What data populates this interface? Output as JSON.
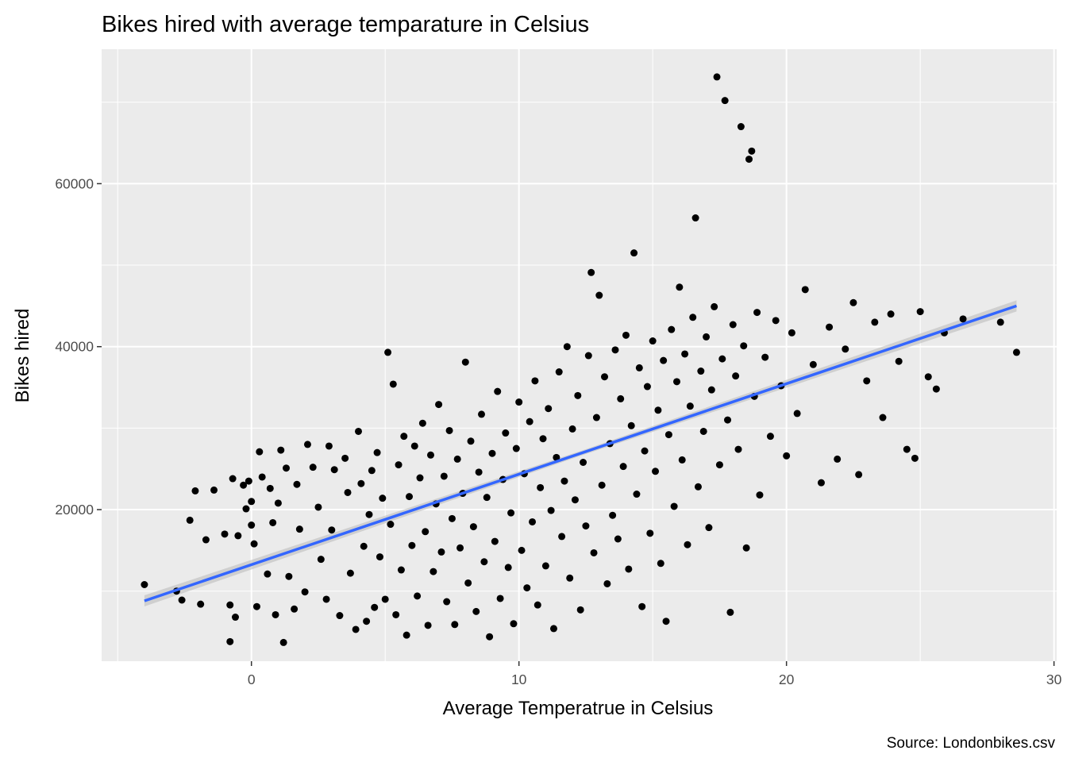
{
  "chart_data": {
    "type": "scatter",
    "title": "Bikes hired with average temparature in Celsius",
    "xlabel": "Average Temperatrue in Celsius",
    "ylabel": "Bikes hired",
    "caption": "Source: Londonbikes.csv",
    "xlim": [
      -5.6,
      30.1
    ],
    "ylim": [
      1400,
      76500
    ],
    "x_ticks": [
      0,
      10,
      20,
      30
    ],
    "x_tick_labels": [
      "0",
      "10",
      "20",
      "30"
    ],
    "y_ticks": [
      20000,
      40000,
      60000
    ],
    "y_tick_labels": [
      "20000",
      "40000",
      "60000"
    ],
    "grid": true,
    "background": "#ebebeb",
    "point_color": "#000000",
    "smooth_line": {
      "method": "linear",
      "color": "#3366ff",
      "ribbon_color": "#bdbdbd",
      "x": [
        -4.0,
        28.6
      ],
      "y": [
        8800,
        45000
      ]
    },
    "series": [
      {
        "points": [
          [
            -4.0,
            10800
          ],
          [
            -2.8,
            10000
          ],
          [
            -2.6,
            8900
          ],
          [
            -2.3,
            18700
          ],
          [
            -2.1,
            22300
          ],
          [
            -1.9,
            8400
          ],
          [
            -1.7,
            16300
          ],
          [
            -1.4,
            22400
          ],
          [
            -1.0,
            17000
          ],
          [
            -0.8,
            8300
          ],
          [
            -0.8,
            3800
          ],
          [
            -0.7,
            23800
          ],
          [
            -0.6,
            6800
          ],
          [
            -0.5,
            16800
          ],
          [
            -0.3,
            23000
          ],
          [
            -0.2,
            20100
          ],
          [
            -0.1,
            23500
          ],
          [
            0.0,
            21000
          ],
          [
            0.0,
            18100
          ],
          [
            0.1,
            15800
          ],
          [
            0.2,
            8100
          ],
          [
            0.3,
            27100
          ],
          [
            0.4,
            24000
          ],
          [
            0.6,
            12100
          ],
          [
            0.7,
            22600
          ],
          [
            0.8,
            18400
          ],
          [
            0.9,
            7100
          ],
          [
            1.0,
            20800
          ],
          [
            1.1,
            27300
          ],
          [
            1.2,
            3700
          ],
          [
            1.3,
            25100
          ],
          [
            1.4,
            11800
          ],
          [
            1.6,
            7800
          ],
          [
            1.7,
            23100
          ],
          [
            1.8,
            17600
          ],
          [
            2.0,
            9900
          ],
          [
            2.1,
            28000
          ],
          [
            2.3,
            25200
          ],
          [
            2.5,
            20300
          ],
          [
            2.6,
            13900
          ],
          [
            2.8,
            9000
          ],
          [
            2.9,
            27800
          ],
          [
            3.0,
            17500
          ],
          [
            3.1,
            24900
          ],
          [
            3.3,
            7000
          ],
          [
            3.5,
            26300
          ],
          [
            3.6,
            22100
          ],
          [
            3.7,
            12200
          ],
          [
            3.9,
            5300
          ],
          [
            4.0,
            29600
          ],
          [
            4.1,
            23200
          ],
          [
            4.2,
            15500
          ],
          [
            4.3,
            6300
          ],
          [
            4.4,
            19400
          ],
          [
            4.5,
            24800
          ],
          [
            4.6,
            8000
          ],
          [
            4.7,
            27000
          ],
          [
            4.8,
            14200
          ],
          [
            4.9,
            21400
          ],
          [
            5.0,
            9000
          ],
          [
            5.1,
            39300
          ],
          [
            5.2,
            18200
          ],
          [
            5.3,
            35400
          ],
          [
            5.4,
            7100
          ],
          [
            5.5,
            25500
          ],
          [
            5.6,
            12600
          ],
          [
            5.7,
            29000
          ],
          [
            5.8,
            4600
          ],
          [
            5.9,
            21600
          ],
          [
            6.0,
            15600
          ],
          [
            6.1,
            27800
          ],
          [
            6.2,
            9400
          ],
          [
            6.3,
            23900
          ],
          [
            6.4,
            30600
          ],
          [
            6.5,
            17300
          ],
          [
            6.6,
            5800
          ],
          [
            6.7,
            26700
          ],
          [
            6.8,
            12400
          ],
          [
            6.9,
            20700
          ],
          [
            7.0,
            32900
          ],
          [
            7.1,
            14800
          ],
          [
            7.2,
            24100
          ],
          [
            7.3,
            8700
          ],
          [
            7.4,
            29700
          ],
          [
            7.5,
            18900
          ],
          [
            7.6,
            5900
          ],
          [
            7.7,
            26200
          ],
          [
            7.8,
            15300
          ],
          [
            7.9,
            22000
          ],
          [
            8.0,
            38100
          ],
          [
            8.1,
            11000
          ],
          [
            8.2,
            28400
          ],
          [
            8.3,
            17900
          ],
          [
            8.4,
            7500
          ],
          [
            8.5,
            24600
          ],
          [
            8.6,
            31700
          ],
          [
            8.7,
            13600
          ],
          [
            8.8,
            21500
          ],
          [
            8.9,
            4400
          ],
          [
            9.0,
            26900
          ],
          [
            9.1,
            16100
          ],
          [
            9.2,
            34500
          ],
          [
            9.3,
            9100
          ],
          [
            9.4,
            23700
          ],
          [
            9.5,
            29400
          ],
          [
            9.6,
            12900
          ],
          [
            9.7,
            19600
          ],
          [
            9.8,
            6000
          ],
          [
            9.9,
            27500
          ],
          [
            10.0,
            33200
          ],
          [
            10.1,
            15000
          ],
          [
            10.2,
            24400
          ],
          [
            10.3,
            10400
          ],
          [
            10.4,
            30800
          ],
          [
            10.5,
            18500
          ],
          [
            10.6,
            35800
          ],
          [
            10.7,
            8300
          ],
          [
            10.8,
            22700
          ],
          [
            10.9,
            28700
          ],
          [
            11.0,
            13100
          ],
          [
            11.1,
            32400
          ],
          [
            11.2,
            19900
          ],
          [
            11.3,
            5400
          ],
          [
            11.4,
            26400
          ],
          [
            11.5,
            36900
          ],
          [
            11.6,
            16700
          ],
          [
            11.7,
            23500
          ],
          [
            11.8,
            40000
          ],
          [
            11.9,
            11600
          ],
          [
            12.0,
            29900
          ],
          [
            12.1,
            21200
          ],
          [
            12.2,
            34000
          ],
          [
            12.3,
            7700
          ],
          [
            12.4,
            25800
          ],
          [
            12.5,
            18000
          ],
          [
            12.6,
            38900
          ],
          [
            12.7,
            49100
          ],
          [
            12.8,
            14700
          ],
          [
            12.9,
            31300
          ],
          [
            13.0,
            46300
          ],
          [
            13.1,
            23000
          ],
          [
            13.2,
            36300
          ],
          [
            13.3,
            10900
          ],
          [
            13.4,
            28100
          ],
          [
            13.5,
            19300
          ],
          [
            13.6,
            39600
          ],
          [
            13.7,
            16400
          ],
          [
            13.8,
            33600
          ],
          [
            13.9,
            25300
          ],
          [
            14.0,
            41400
          ],
          [
            14.1,
            12700
          ],
          [
            14.2,
            30300
          ],
          [
            14.3,
            51500
          ],
          [
            14.4,
            21900
          ],
          [
            14.5,
            37400
          ],
          [
            14.6,
            8100
          ],
          [
            14.7,
            27200
          ],
          [
            14.8,
            35100
          ],
          [
            14.9,
            17100
          ],
          [
            15.0,
            40700
          ],
          [
            15.1,
            24700
          ],
          [
            15.2,
            32200
          ],
          [
            15.3,
            13400
          ],
          [
            15.4,
            38300
          ],
          [
            15.5,
            6300
          ],
          [
            15.6,
            29200
          ],
          [
            15.7,
            42100
          ],
          [
            15.8,
            20400
          ],
          [
            15.9,
            35700
          ],
          [
            16.0,
            47300
          ],
          [
            16.1,
            26100
          ],
          [
            16.2,
            39100
          ],
          [
            16.3,
            15700
          ],
          [
            16.4,
            32700
          ],
          [
            16.5,
            43600
          ],
          [
            16.6,
            55800
          ],
          [
            16.7,
            22800
          ],
          [
            16.8,
            37000
          ],
          [
            16.9,
            29600
          ],
          [
            17.0,
            41200
          ],
          [
            17.1,
            17800
          ],
          [
            17.2,
            34700
          ],
          [
            17.3,
            44900
          ],
          [
            17.4,
            73100
          ],
          [
            17.5,
            25500
          ],
          [
            17.6,
            38500
          ],
          [
            17.7,
            70200
          ],
          [
            17.8,
            31000
          ],
          [
            17.9,
            7400
          ],
          [
            18.0,
            42700
          ],
          [
            18.1,
            36400
          ],
          [
            18.2,
            27400
          ],
          [
            18.3,
            67000
          ],
          [
            18.4,
            40100
          ],
          [
            18.5,
            15300
          ],
          [
            18.6,
            63000
          ],
          [
            18.7,
            64000
          ],
          [
            18.8,
            33900
          ],
          [
            18.9,
            44200
          ],
          [
            19.0,
            21800
          ],
          [
            19.2,
            38700
          ],
          [
            19.4,
            29000
          ],
          [
            19.6,
            43200
          ],
          [
            19.8,
            35200
          ],
          [
            20.0,
            26600
          ],
          [
            20.2,
            41700
          ],
          [
            20.4,
            31800
          ],
          [
            20.7,
            47000
          ],
          [
            21.0,
            37800
          ],
          [
            21.3,
            23300
          ],
          [
            21.6,
            42400
          ],
          [
            21.9,
            26200
          ],
          [
            22.2,
            39700
          ],
          [
            22.5,
            45400
          ],
          [
            22.7,
            24300
          ],
          [
            23.0,
            35800
          ],
          [
            23.3,
            43000
          ],
          [
            23.6,
            31300
          ],
          [
            23.9,
            44000
          ],
          [
            24.2,
            38200
          ],
          [
            24.5,
            27400
          ],
          [
            24.8,
            26300
          ],
          [
            25.0,
            44300
          ],
          [
            25.3,
            36300
          ],
          [
            25.6,
            34800
          ],
          [
            25.9,
            41700
          ],
          [
            26.6,
            43400
          ],
          [
            28.0,
            43000
          ],
          [
            28.6,
            39300
          ]
        ]
      }
    ]
  }
}
